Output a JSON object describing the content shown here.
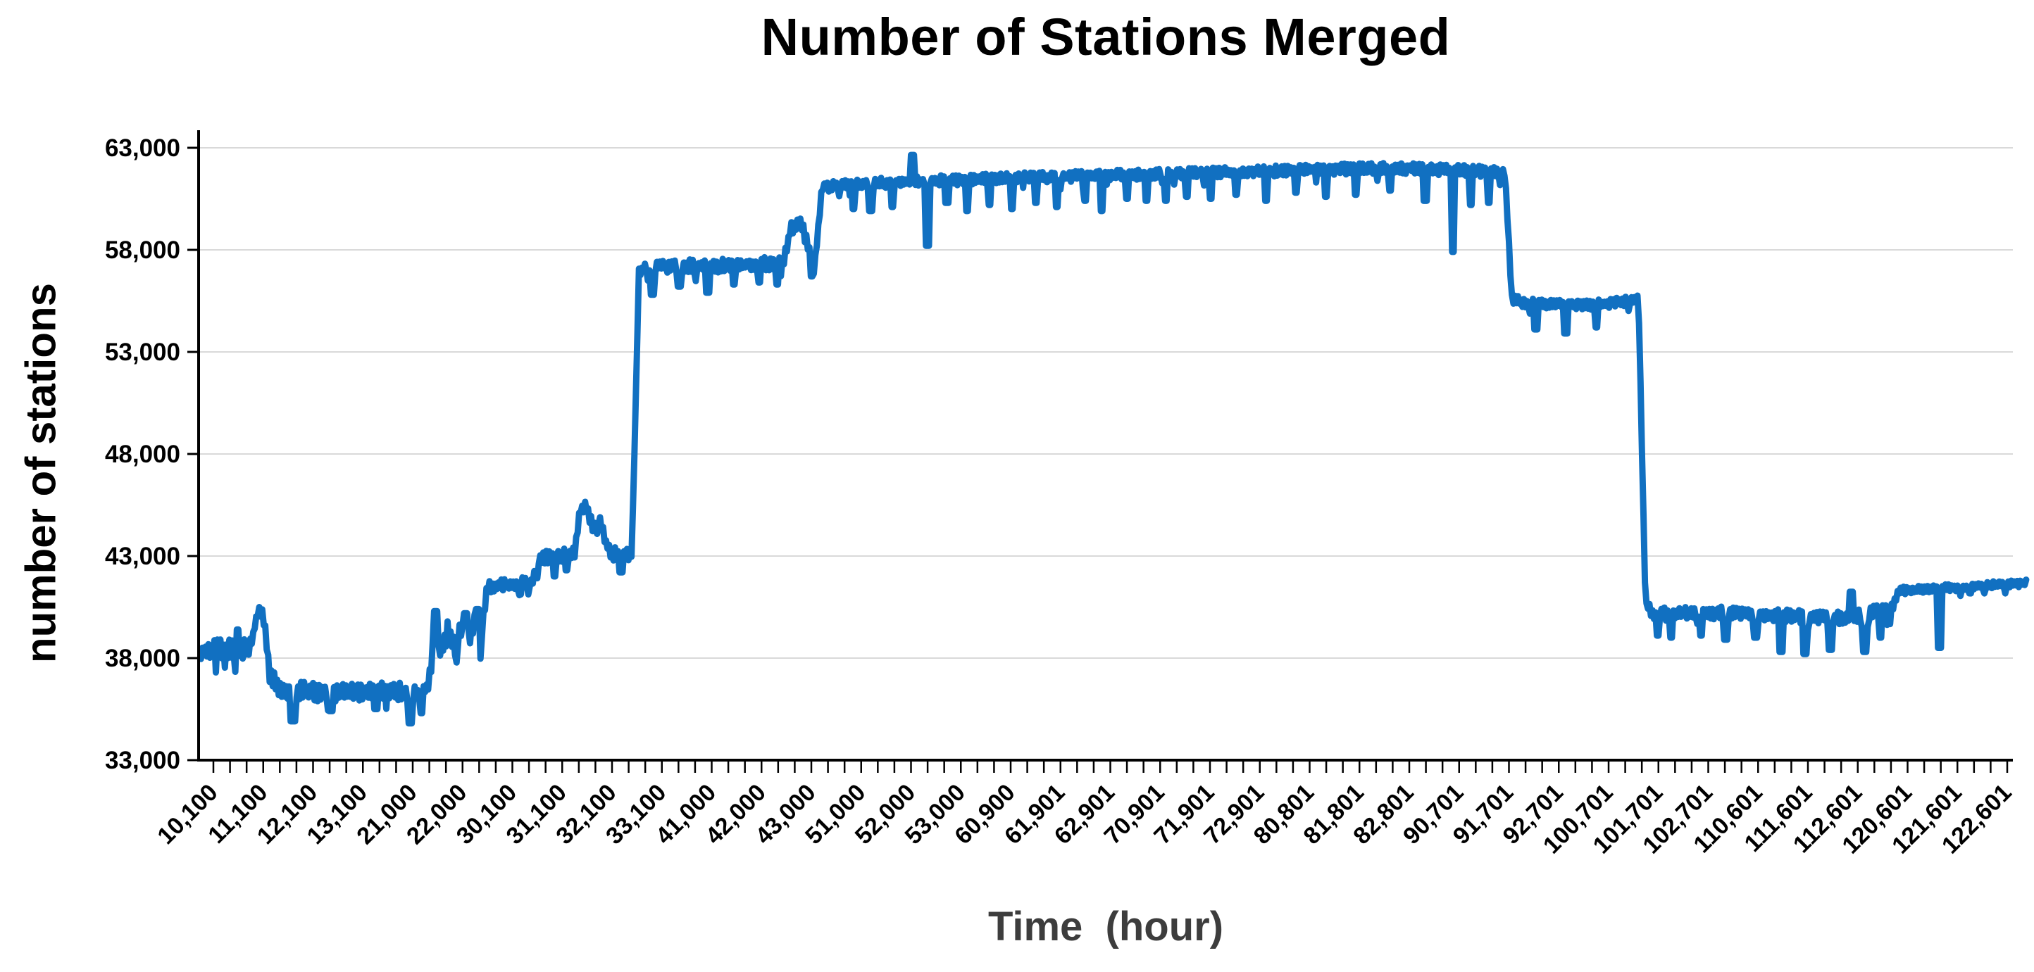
{
  "figure": {
    "background": "#ffffff"
  },
  "chart_data": {
    "type": "line",
    "title": "Number of Stations Merged",
    "xlabel": "Time  (hour)",
    "ylabel": "number of stations",
    "line_color": "#1170C1",
    "grid_color": "#D9D9D9",
    "axis_color": "#000000",
    "xlabel_color": "#3d3d3d",
    "ylim": [
      33000,
      63000
    ],
    "y_ticks": [
      33000,
      38000,
      43000,
      48000,
      53000,
      58000,
      63000
    ],
    "y_tick_labels": [
      "33,000",
      "38,000",
      "43,000",
      "48,000",
      "53,000",
      "58,000",
      "63,000"
    ],
    "x_tick_labels": [
      "10,100",
      "11,100",
      "12,100",
      "13,100",
      "21,000",
      "22,000",
      "30,100",
      "31,100",
      "32,100",
      "33,100",
      "41,000",
      "42,000",
      "43,000",
      "51,000",
      "52,000",
      "53,000",
      "60,900",
      "61,901",
      "62,901",
      "70,901",
      "71,901",
      "72,901",
      "80,801",
      "81,801",
      "82,801",
      "90,701",
      "91,701",
      "92,701",
      "100,701",
      "101,701",
      "102,701",
      "110,601",
      "111,601",
      "112,601",
      "120,601",
      "121,601",
      "122,601"
    ],
    "minor_ticks_per_label": 3,
    "grid": true,
    "legend": false,
    "series": {
      "name": "number of stations merged",
      "anchors": [
        [
          -0.25,
          38300
        ],
        [
          0.3,
          38500
        ],
        [
          0.72,
          38400
        ],
        [
          0.8,
          39200
        ],
        [
          0.88,
          40200
        ],
        [
          0.98,
          40300
        ],
        [
          1.05,
          39200
        ],
        [
          1.12,
          37300
        ],
        [
          1.3,
          36500
        ],
        [
          2.2,
          36300
        ],
        [
          3.2,
          36400
        ],
        [
          4.1,
          36300
        ],
        [
          4.3,
          36600
        ],
        [
          4.42,
          38700
        ],
        [
          4.56,
          38300
        ],
        [
          4.7,
          39300
        ],
        [
          4.84,
          38600
        ],
        [
          4.98,
          39500
        ],
        [
          5.1,
          38800
        ],
        [
          5.24,
          39800
        ],
        [
          5.36,
          39000
        ],
        [
          5.5,
          41500
        ],
        [
          6.4,
          41700
        ],
        [
          6.55,
          42900
        ],
        [
          7.25,
          43100
        ],
        [
          7.35,
          45200
        ],
        [
          7.5,
          45400
        ],
        [
          7.62,
          44300
        ],
        [
          7.75,
          44900
        ],
        [
          7.88,
          43600
        ],
        [
          8.0,
          43100
        ],
        [
          8.4,
          43100
        ],
        [
          8.54,
          57000
        ],
        [
          8.75,
          57200
        ],
        [
          10.0,
          57200
        ],
        [
          11.0,
          57300
        ],
        [
          11.45,
          57400
        ],
        [
          11.58,
          59000
        ],
        [
          11.78,
          59400
        ],
        [
          11.9,
          58400
        ],
        [
          12.0,
          57500
        ],
        [
          12.08,
          57600
        ],
        [
          12.22,
          61100
        ],
        [
          12.8,
          61200
        ],
        [
          14.5,
          61400
        ],
        [
          16.5,
          61550
        ],
        [
          18.5,
          61700
        ],
        [
          20.5,
          61800
        ],
        [
          22.5,
          61950
        ],
        [
          23.8,
          62000
        ],
        [
          25.0,
          61900
        ],
        [
          25.92,
          61800
        ],
        [
          26.06,
          55600
        ],
        [
          26.3,
          55400
        ],
        [
          27.6,
          55300
        ],
        [
          28.3,
          55450
        ],
        [
          28.6,
          55550
        ],
        [
          28.74,
          40700
        ],
        [
          28.9,
          40100
        ],
        [
          29.6,
          40250
        ],
        [
          30.6,
          40200
        ],
        [
          31.6,
          40050
        ],
        [
          32.7,
          39950
        ],
        [
          33.35,
          40250
        ],
        [
          33.68,
          40350
        ],
        [
          33.82,
          41300
        ],
        [
          34.6,
          41400
        ],
        [
          35.6,
          41550
        ],
        [
          36.4,
          41700
        ]
      ],
      "noise_segments": [
        [
          -0.25,
          0.75,
          500
        ],
        [
          0.75,
          1.1,
          280
        ],
        [
          1.1,
          4.32,
          450
        ],
        [
          4.32,
          5.42,
          520
        ],
        [
          5.42,
          6.48,
          300
        ],
        [
          6.48,
          8.45,
          330
        ],
        [
          8.45,
          8.62,
          120
        ],
        [
          8.62,
          12.14,
          340
        ],
        [
          12.14,
          25.98,
          270
        ],
        [
          25.98,
          28.66,
          240
        ],
        [
          28.66,
          28.82,
          120
        ],
        [
          28.82,
          33.74,
          330
        ],
        [
          33.74,
          36.4,
          190
        ]
      ],
      "events": [
        [
          0.5,
          39400,
          0.06
        ],
        [
          1.6,
          34900,
          0.1
        ],
        [
          2.35,
          35400,
          0.08
        ],
        [
          3.25,
          35500,
          0.08
        ],
        [
          3.95,
          34800,
          0.1
        ],
        [
          4.18,
          35300,
          0.07
        ],
        [
          4.46,
          40300,
          0.08
        ],
        [
          5.06,
          40200,
          0.07
        ],
        [
          5.3,
          40400,
          0.08
        ],
        [
          6.85,
          42000,
          0.07
        ],
        [
          7.08,
          42300,
          0.06
        ],
        [
          8.18,
          42200,
          0.07
        ],
        [
          8.82,
          55800,
          0.08
        ],
        [
          9.35,
          56200,
          0.07
        ],
        [
          9.92,
          55900,
          0.09
        ],
        [
          10.45,
          56300,
          0.07
        ],
        [
          10.95,
          56400,
          0.07
        ],
        [
          11.3,
          56300,
          0.06
        ],
        [
          12.0,
          56700,
          0.05
        ],
        [
          12.85,
          60000,
          0.06
        ],
        [
          13.18,
          59900,
          0.08
        ],
        [
          13.62,
          60100,
          0.07
        ],
        [
          14.02,
          62650,
          0.09
        ],
        [
          14.34,
          58200,
          0.09
        ],
        [
          14.72,
          60300,
          0.07
        ],
        [
          15.12,
          59900,
          0.08
        ],
        [
          15.58,
          60200,
          0.07
        ],
        [
          16.02,
          60000,
          0.08
        ],
        [
          16.5,
          60300,
          0.06
        ],
        [
          16.92,
          60100,
          0.07
        ],
        [
          17.5,
          60400,
          0.06
        ],
        [
          17.82,
          59900,
          0.08
        ],
        [
          18.32,
          60500,
          0.06
        ],
        [
          18.72,
          60400,
          0.07
        ],
        [
          19.12,
          60400,
          0.06
        ],
        [
          19.52,
          60600,
          0.06
        ],
        [
          20.02,
          60500,
          0.07
        ],
        [
          20.52,
          60700,
          0.06
        ],
        [
          21.12,
          60400,
          0.07
        ],
        [
          21.72,
          60800,
          0.06
        ],
        [
          22.32,
          60600,
          0.06
        ],
        [
          22.92,
          60700,
          0.06
        ],
        [
          23.62,
          60900,
          0.06
        ],
        [
          24.32,
          60400,
          0.07
        ],
        [
          24.88,
          57900,
          0.08
        ],
        [
          25.25,
          60200,
          0.06
        ],
        [
          25.6,
          60300,
          0.06
        ],
        [
          26.55,
          54100,
          0.08
        ],
        [
          27.15,
          53900,
          0.08
        ],
        [
          27.75,
          54200,
          0.07
        ],
        [
          29.0,
          39100,
          0.06
        ],
        [
          29.25,
          39000,
          0.07
        ],
        [
          29.85,
          39100,
          0.07
        ],
        [
          30.35,
          38900,
          0.08
        ],
        [
          30.95,
          39000,
          0.07
        ],
        [
          31.45,
          38300,
          0.09
        ],
        [
          31.95,
          38200,
          0.08
        ],
        [
          32.45,
          38400,
          0.08
        ],
        [
          32.88,
          41250,
          0.1
        ],
        [
          33.15,
          38300,
          0.08
        ],
        [
          33.45,
          39000,
          0.06
        ],
        [
          34.65,
          38500,
          0.09
        ]
      ]
    }
  }
}
